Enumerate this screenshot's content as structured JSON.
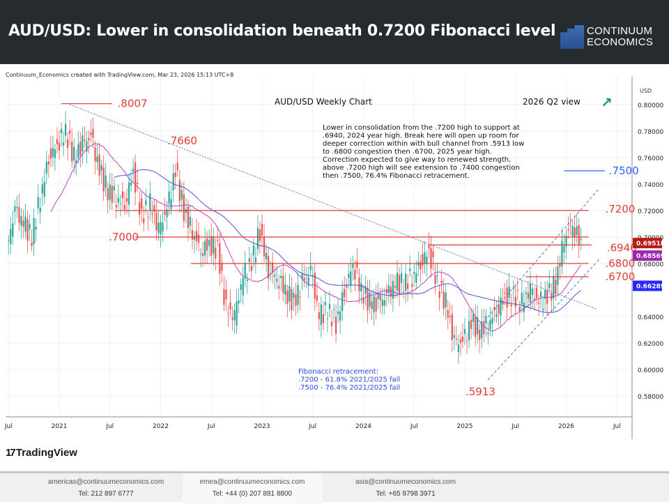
{
  "header": {
    "title": "AUD/USD: Lower in consolidation beneath 0.7200 Fibonacci level",
    "logo_line1": "CONTINUUM",
    "logo_line2": "ECONOMICS"
  },
  "credit": "Continuum_Economics created with TradingView.com, Mar 23, 2026 15:13 UTC+8",
  "branding": "TradingView",
  "footer": [
    {
      "email": "americas@continuumeconomics.com",
      "tel": "Tel: 212 897 6777"
    },
    {
      "email": "emea@continuumeconomics.com",
      "tel": "Tel: +44 (0) 207 881 8800"
    },
    {
      "email": "asia@continuumeconomics.com",
      "tel": "Tel: +65 9798 3971"
    }
  ],
  "chart_data": {
    "type": "candlestick",
    "title": "AUD/USD Weekly Chart",
    "view_label": "2026 Q2 view",
    "currency": "USD",
    "ylim": [
      0.57,
      0.815
    ],
    "yticks": [
      "0.80000",
      "0.78000",
      "0.76000",
      "0.74000",
      "0.72000",
      "0.70000",
      "0.68000",
      "0.64000",
      "0.62000",
      "0.60000",
      "0.58000"
    ],
    "yticks_values": [
      0.8,
      0.78,
      0.76,
      0.74,
      0.72,
      0.7,
      0.68,
      0.64,
      0.62,
      0.6,
      0.58
    ],
    "xticks": [
      {
        "label": "Jul",
        "t": 2020.5
      },
      {
        "label": "2021",
        "t": 2021
      },
      {
        "label": "Jul",
        "t": 2021.5
      },
      {
        "label": "2022",
        "t": 2022
      },
      {
        "label": "Jul",
        "t": 2022.5
      },
      {
        "label": "2023",
        "t": 2023
      },
      {
        "label": "Jul",
        "t": 2023.5
      },
      {
        "label": "2024",
        "t": 2024
      },
      {
        "label": "Jul",
        "t": 2024.5
      },
      {
        "label": "2025",
        "t": 2025
      },
      {
        "label": "Jul",
        "t": 2025.5
      },
      {
        "label": "2026",
        "t": 2026
      },
      {
        "label": "Jul",
        "t": 2026.5
      }
    ],
    "monthly_closes_start": 2020.5,
    "monthly_closes": [
      0.69,
      0.72,
      0.71,
      0.7,
      0.73,
      0.76,
      0.77,
      0.78,
      0.76,
      0.77,
      0.775,
      0.75,
      0.735,
      0.73,
      0.725,
      0.75,
      0.715,
      0.725,
      0.705,
      0.72,
      0.75,
      0.72,
      0.705,
      0.69,
      0.695,
      0.69,
      0.645,
      0.64,
      0.67,
      0.68,
      0.705,
      0.675,
      0.67,
      0.66,
      0.65,
      0.665,
      0.675,
      0.64,
      0.645,
      0.635,
      0.66,
      0.68,
      0.66,
      0.65,
      0.65,
      0.655,
      0.665,
      0.665,
      0.67,
      0.68,
      0.69,
      0.665,
      0.65,
      0.62,
      0.62,
      0.635,
      0.63,
      0.635,
      0.645,
      0.655,
      0.655,
      0.65,
      0.66,
      0.65,
      0.655,
      0.665,
      0.7,
      0.71,
      0.695
    ],
    "current_prices": [
      {
        "label": "0.69518",
        "value": 0.69518,
        "color": "#b71c1c"
      },
      {
        "label": "0.68569",
        "value": 0.68569,
        "color": "#9c27b0"
      },
      {
        "label": "0.66289",
        "value": 0.66289,
        "color": "#2929ff"
      }
    ],
    "levels": [
      {
        "label": ".8007",
        "value": 0.8007,
        "t0": 2021.02,
        "t1": 2021.52,
        "color": "#e53935"
      },
      {
        "label": ".7200",
        "value": 0.72,
        "t0": 2021.55,
        "t1": 2026.22,
        "color": "#e53935"
      },
      {
        "label": ".7000",
        "value": 0.7,
        "t0": 2021.75,
        "t1": 2026.22,
        "color": "#e53935"
      },
      {
        "label": ".6940",
        "value": 0.694,
        "t0": 2024.65,
        "t1": 2026.25,
        "color": "#e53935"
      },
      {
        "label": ".6800",
        "value": 0.68,
        "t0": 2022.3,
        "t1": 2026.22,
        "color": "#e53935"
      },
      {
        "label": ".6700",
        "value": 0.67,
        "t0": 2025.6,
        "t1": 2026.22,
        "color": "#e53935"
      },
      {
        "label": ".7500",
        "value": 0.75,
        "t0": 2025.98,
        "t1": 2026.38,
        "color": "#2962ff"
      }
    ],
    "annotations": {
      "high_2022": ".7660",
      "low_2025": ".5913",
      "commentary": [
        "Lower in consolidation from the .7200 high to support at",
        ".6940, 2024 year high. Break here will open up room for",
        "deeper correction within with bull channel from .5913 low",
        "to .6800 congestion then .6700, 2025 year high.",
        "Correction expected to give way to renewed strength,",
        "above .7200 high will see extension to .7400 congestion",
        "then .7500, 76.4% Fibonacci retracement."
      ],
      "fib": [
        "Fibonacci retracement:",
        ".7200 - 61.8% 2021/2025 fall",
        ".7500 - 76.4% 2021/2025 fall"
      ]
    },
    "colors": {
      "up": "#26a69a",
      "down": "#ef5350",
      "ma_short": "#c040c0",
      "ma_long": "#4b52d6",
      "trend": "#4a78c9"
    }
  }
}
